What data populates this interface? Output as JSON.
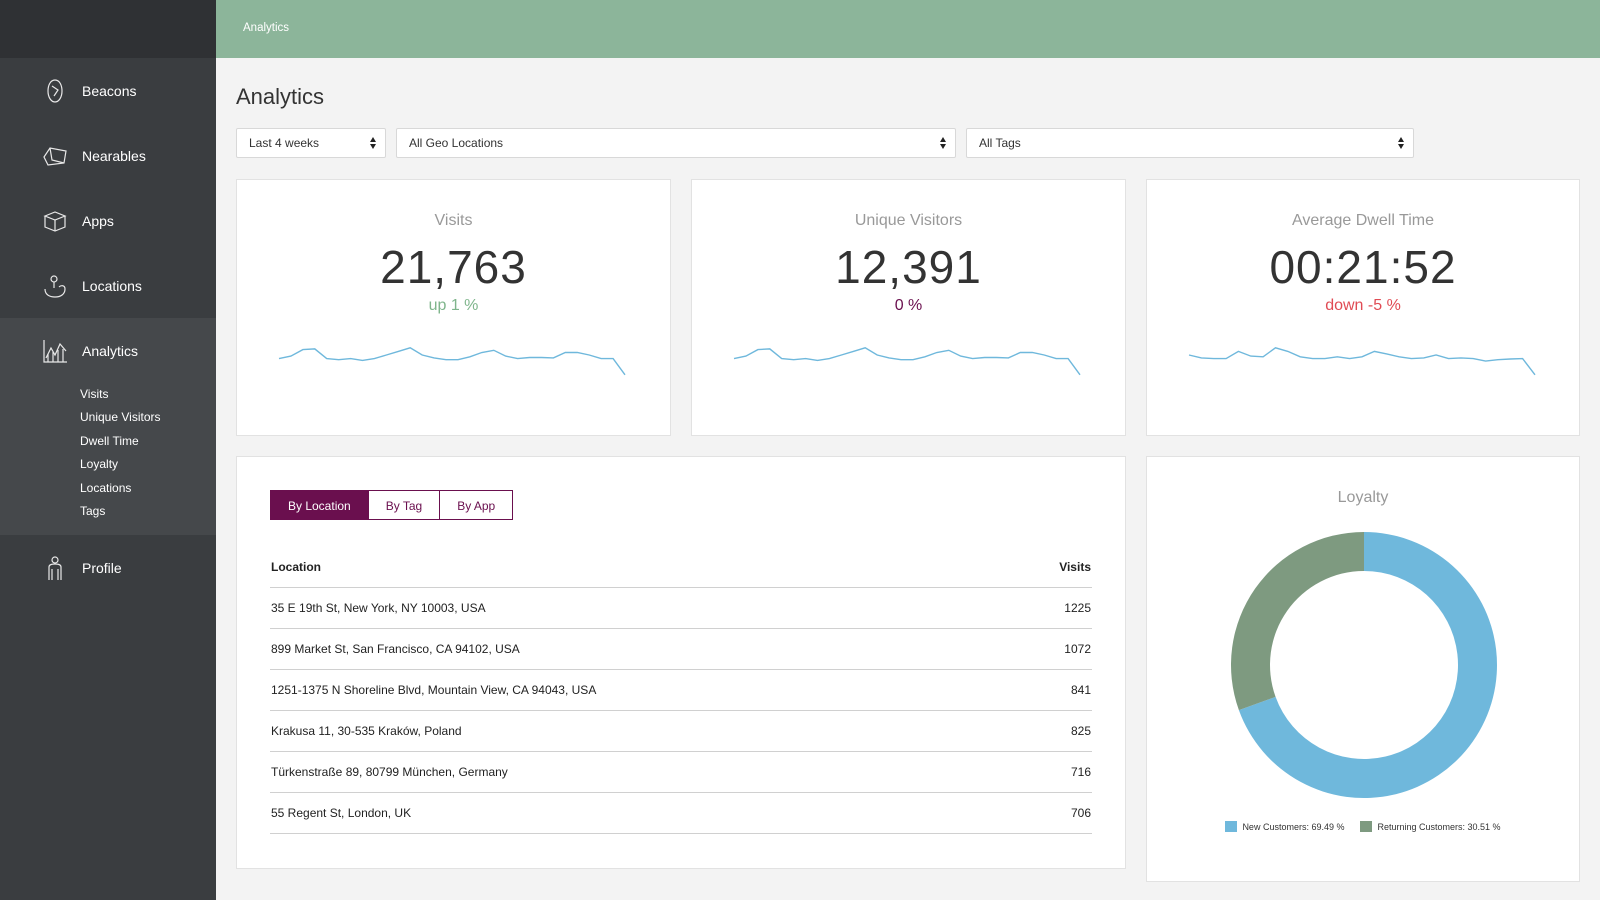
{
  "sidebar": {
    "items": [
      {
        "label": "Beacons",
        "icon": "beacon-icon"
      },
      {
        "label": "Nearables",
        "icon": "nearable-icon"
      },
      {
        "label": "Apps",
        "icon": "apps-box-icon"
      },
      {
        "label": "Locations",
        "icon": "location-hand-icon"
      },
      {
        "label": "Analytics",
        "icon": "analytics-chart-icon"
      },
      {
        "label": "Profile",
        "icon": "profile-person-icon"
      }
    ],
    "analytics_sub": [
      "Visits",
      "Unique Visitors",
      "Dwell Time",
      "Loyalty",
      "Locations",
      "Tags"
    ]
  },
  "header": {
    "breadcrumb": "Analytics",
    "color": "#8cb59a"
  },
  "page": {
    "title": "Analytics"
  },
  "filters": {
    "period": "Last 4 weeks",
    "geo": "All Geo Locations",
    "tags": "All Tags"
  },
  "stats": [
    {
      "title": "Visits",
      "value": "21,763",
      "change": "up 1 %",
      "change_color": "#7fb58c",
      "trend": [
        0.35,
        0.28,
        0.1,
        0.08,
        0.35,
        0.38,
        0.35,
        0.4,
        0.35,
        0.25,
        0.15,
        0.05,
        0.25,
        0.33,
        0.38,
        0.38,
        0.3,
        0.18,
        0.12,
        0.28,
        0.35,
        0.32,
        0.32,
        0.33,
        0.18,
        0.18,
        0.25,
        0.35,
        0.35,
        0.8
      ]
    },
    {
      "title": "Unique Visitors",
      "value": "12,391",
      "change": "0 %",
      "change_color": "#6a0f4e",
      "trend": [
        0.35,
        0.28,
        0.1,
        0.08,
        0.35,
        0.38,
        0.35,
        0.4,
        0.35,
        0.25,
        0.15,
        0.05,
        0.25,
        0.33,
        0.38,
        0.38,
        0.3,
        0.18,
        0.12,
        0.28,
        0.35,
        0.32,
        0.32,
        0.33,
        0.18,
        0.18,
        0.25,
        0.35,
        0.35,
        0.8
      ]
    },
    {
      "title": "Average Dwell Time",
      "value": "00:21:52",
      "change": "down -5 %",
      "change_color": "#e04b54",
      "trend": [
        0.25,
        0.33,
        0.35,
        0.35,
        0.15,
        0.28,
        0.3,
        0.05,
        0.15,
        0.3,
        0.35,
        0.35,
        0.3,
        0.35,
        0.3,
        0.15,
        0.22,
        0.3,
        0.35,
        0.33,
        0.25,
        0.35,
        0.33,
        0.35,
        0.42,
        0.38,
        0.36,
        0.35,
        0.8
      ]
    }
  ],
  "table": {
    "tabs": [
      "By Location",
      "By Tag",
      "By App"
    ],
    "active_tab": "By Location",
    "headers": [
      "Location",
      "Visits"
    ],
    "rows": [
      [
        "35 E 19th St, New York, NY 10003, USA",
        "1225"
      ],
      [
        "899 Market St, San Francisco, CA 94102, USA",
        "1072"
      ],
      [
        "1251-1375 N Shoreline Blvd, Mountain View, CA 94043, USA",
        "841"
      ],
      [
        "Krakusa 11, 30-535 Kraków, Poland",
        "825"
      ],
      [
        "Türkenstraße 89, 80799 München, Germany",
        "716"
      ],
      [
        "55 Regent St, London, UK",
        "706"
      ]
    ]
  },
  "loyalty": {
    "title": "Loyalty",
    "legend": [
      "New Customers: 69.49 %",
      "Returning Customers: 30.51 %"
    ]
  },
  "chart_data": {
    "type": "pie",
    "title": "Loyalty",
    "categories": [
      "New Customers",
      "Returning Customers"
    ],
    "values": [
      69.49,
      30.51
    ],
    "colors": [
      "#6fb8dc",
      "#7e9a80"
    ],
    "donut": true,
    "legend": "bottom"
  }
}
